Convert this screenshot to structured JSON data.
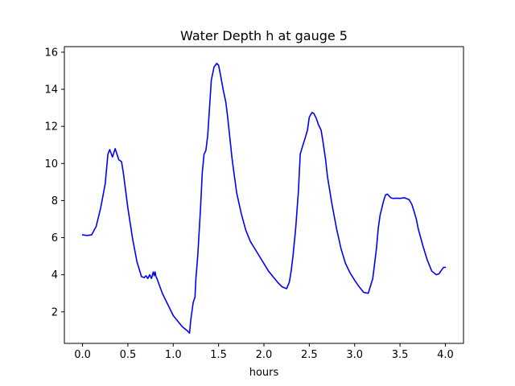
{
  "chart_data": {
    "type": "line",
    "title": "Water Depth h at gauge 5",
    "xlabel": "hours",
    "ylabel": "",
    "xlim": [
      -0.2,
      4.2
    ],
    "ylim": [
      0.3,
      16.3
    ],
    "xticks": [
      0.0,
      0.5,
      1.0,
      1.5,
      2.0,
      2.5,
      3.0,
      3.5,
      4.0
    ],
    "xtick_labels": [
      "0.0",
      "0.5",
      "1.0",
      "1.5",
      "2.0",
      "2.5",
      "3.0",
      "3.5",
      "4.0"
    ],
    "yticks": [
      2,
      4,
      6,
      8,
      10,
      12,
      14,
      16
    ],
    "ytick_labels": [
      "2",
      "4",
      "6",
      "8",
      "10",
      "12",
      "14",
      "16"
    ],
    "grid": false,
    "series": [
      {
        "color": "#0000ff",
        "x": [
          0.0,
          0.05,
          0.1,
          0.15,
          0.2,
          0.25,
          0.28,
          0.3,
          0.33,
          0.36,
          0.38,
          0.4,
          0.43,
          0.45,
          0.5,
          0.55,
          0.6,
          0.65,
          0.68,
          0.7,
          0.72,
          0.74,
          0.76,
          0.78,
          0.79,
          0.8,
          0.81,
          0.82,
          0.85,
          0.88,
          0.9,
          0.95,
          1.0,
          1.05,
          1.1,
          1.15,
          1.18,
          1.19,
          1.2,
          1.22,
          1.24,
          1.25,
          1.27,
          1.3,
          1.32,
          1.34,
          1.36,
          1.38,
          1.4,
          1.42,
          1.45,
          1.48,
          1.5,
          1.52,
          1.55,
          1.58,
          1.6,
          1.65,
          1.7,
          1.75,
          1.8,
          1.85,
          1.9,
          1.95,
          2.0,
          2.05,
          2.1,
          2.15,
          2.2,
          2.25,
          2.28,
          2.3,
          2.32,
          2.35,
          2.38,
          2.4,
          2.43,
          2.45,
          2.48,
          2.5,
          2.53,
          2.55,
          2.58,
          2.6,
          2.63,
          2.65,
          2.68,
          2.7,
          2.75,
          2.8,
          2.85,
          2.9,
          2.95,
          3.0,
          3.05,
          3.1,
          3.15,
          3.2,
          3.22,
          3.24,
          3.26,
          3.28,
          3.3,
          3.32,
          3.34,
          3.36,
          3.38,
          3.4,
          3.42,
          3.44,
          3.46,
          3.5,
          3.55,
          3.6,
          3.63,
          3.65,
          3.68,
          3.7,
          3.75,
          3.8,
          3.85,
          3.9,
          3.93,
          3.95,
          3.98,
          4.0
        ],
        "y": [
          6.15,
          6.12,
          6.15,
          6.6,
          7.6,
          8.9,
          10.5,
          10.75,
          10.35,
          10.8,
          10.5,
          10.2,
          10.1,
          9.5,
          7.6,
          6.0,
          4.7,
          3.9,
          3.85,
          3.95,
          3.8,
          4.0,
          3.8,
          4.15,
          3.95,
          4.15,
          3.9,
          3.8,
          3.4,
          3.0,
          2.8,
          2.3,
          1.8,
          1.5,
          1.2,
          1.0,
          0.85,
          1.4,
          1.8,
          2.5,
          2.8,
          3.8,
          5.0,
          7.5,
          9.5,
          10.5,
          10.7,
          11.5,
          13.0,
          14.5,
          15.2,
          15.4,
          15.3,
          14.8,
          14.0,
          13.3,
          12.5,
          10.2,
          8.4,
          7.3,
          6.4,
          5.8,
          5.4,
          5.0,
          4.6,
          4.2,
          3.9,
          3.6,
          3.35,
          3.25,
          3.6,
          4.2,
          5.0,
          6.5,
          8.5,
          10.5,
          11.0,
          11.3,
          11.8,
          12.5,
          12.75,
          12.7,
          12.4,
          12.1,
          11.8,
          11.2,
          10.2,
          9.3,
          7.8,
          6.5,
          5.4,
          4.6,
          4.1,
          3.7,
          3.35,
          3.05,
          3.0,
          3.8,
          4.6,
          5.4,
          6.5,
          7.2,
          7.6,
          8.0,
          8.3,
          8.35,
          8.25,
          8.15,
          8.12,
          8.12,
          8.13,
          8.12,
          8.15,
          8.05,
          7.8,
          7.5,
          7.0,
          6.5,
          5.6,
          4.8,
          4.2,
          4.0,
          4.05,
          4.2,
          4.4,
          4.4
        ]
      }
    ]
  }
}
